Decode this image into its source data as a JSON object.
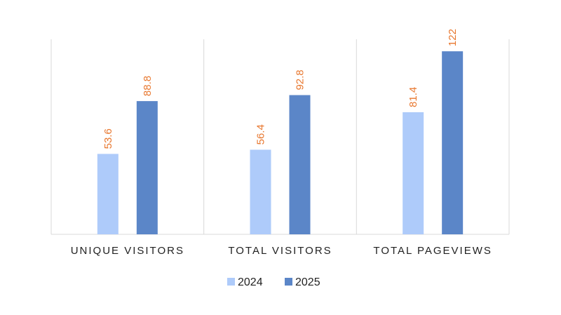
{
  "chart_data": {
    "type": "bar",
    "categories": [
      "UNIQUE VISITORS",
      "TOTAL VISITORS",
      "TOTAL PAGEVIEWS"
    ],
    "series": [
      {
        "name": "2024",
        "values": [
          53.6,
          56.4,
          81.4
        ],
        "color": "#AECBFA"
      },
      {
        "name": "2025",
        "values": [
          88.8,
          92.8,
          122
        ],
        "color": "#5B86C8"
      }
    ],
    "data_label_color": "#E8772E",
    "ylim": [
      0,
      130
    ],
    "grid": false,
    "category_separators": true,
    "legend_position": "bottom-center",
    "data_labels_rotated": true
  }
}
